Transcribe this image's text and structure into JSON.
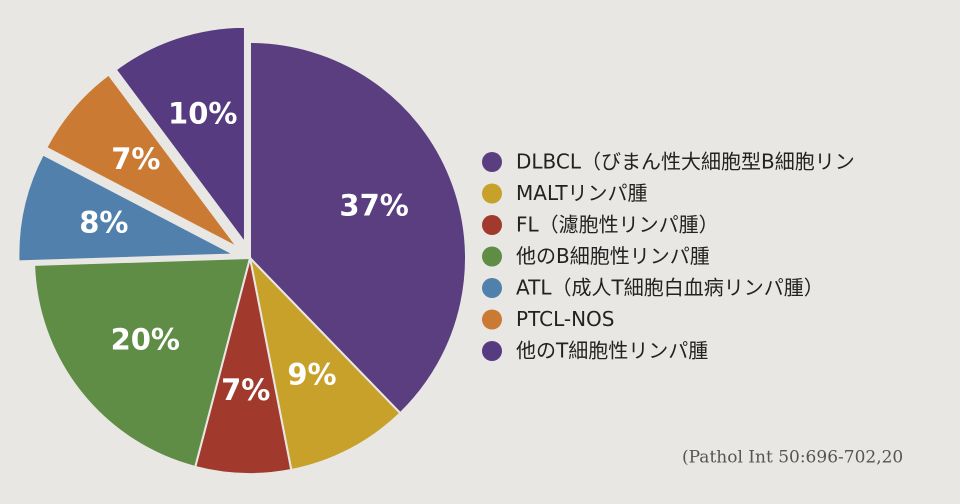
{
  "chart_data": {
    "type": "pie",
    "categories": [
      "DLBCL（びまん性大細胞型B細胞リン",
      "MALTリンパ腫",
      "FL（濾胞性リンパ腫）",
      "他のB細胞性リンパ腫",
      "ATL（成人T細胞白血病リンパ腫）",
      "PTCL-NOS",
      "他のT細胞性リンパ腫"
    ],
    "values": [
      37,
      9,
      7,
      20,
      8,
      7,
      10
    ],
    "value_labels": [
      "37%",
      "9%",
      "7%",
      "20%",
      "8%",
      "7%",
      "10%"
    ],
    "colors": [
      "#5a3e80",
      "#c8a12a",
      "#a13a2d",
      "#5f8d46",
      "#5280ad",
      "#cb7a34",
      "#563b81"
    ],
    "explode": [
      false,
      false,
      false,
      false,
      true,
      true,
      true
    ],
    "legend": "right",
    "annotations": [
      "(Pathol Int 50:696-702,20"
    ]
  }
}
